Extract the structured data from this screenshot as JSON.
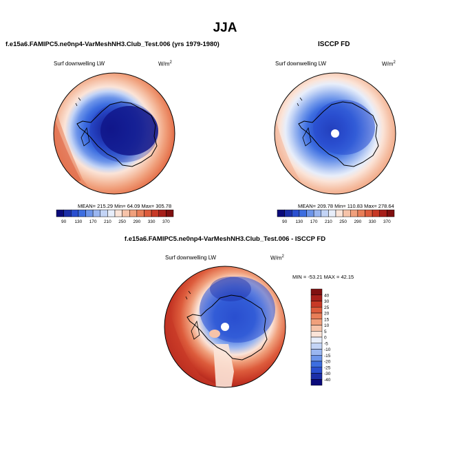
{
  "page": {
    "season": "JJA",
    "left_title": "f.e15a6.FAMIPC5.ne0np4-VarMeshNH3.Club_Test.006 (yrs 1979-1980)",
    "right_title": "ISCCP FD",
    "diff_title": "f.e15a6.FAMIPC5.ne0np4-VarMeshNH3.Club_Test.006 - ISCCP FD"
  },
  "panels": {
    "model": {
      "variable": "Surf downwelling LW",
      "units_base": "W/m",
      "units_exp": "2",
      "stats": "MEAN= 215.29  Min=  64.09  Max= 305.78"
    },
    "obs": {
      "variable": "Surf downwelling LW",
      "units_base": "W/m",
      "units_exp": "2",
      "stats": "MEAN= 209.78  Min= 110.83  Max= 278.64"
    },
    "diff": {
      "variable": "Surf downwelling LW",
      "units_base": "W/m",
      "units_exp": "2",
      "stats": "MIN = -53.21  MAX =  42.15"
    }
  },
  "chart_data": [
    {
      "type": "heatmap",
      "name": "model",
      "title": "Surf downwelling LW",
      "projection": "south-polar stereographic",
      "units": "W/m2",
      "mean": 215.29,
      "min": 64.09,
      "max": 305.78,
      "colorbar": {
        "orientation": "horizontal",
        "levels": [
          90,
          110,
          130,
          150,
          170,
          190,
          210,
          230,
          250,
          270,
          290,
          310,
          330,
          350,
          370
        ],
        "tick_labels": [
          "90",
          "130",
          "170",
          "210",
          "250",
          "290",
          "330",
          "370"
        ],
        "colors": [
          "#0a0a7a",
          "#1c2fa8",
          "#2a4fcf",
          "#3d6ee0",
          "#6d95ea",
          "#9ab6f0",
          "#c3d4f6",
          "#e8eefa",
          "#fbe4d8",
          "#f6c3a9",
          "#f0a07c",
          "#e87e58",
          "#dd5c3c",
          "#c73926",
          "#a71f1a",
          "#801010"
        ]
      }
    },
    {
      "type": "heatmap",
      "name": "obs",
      "title": "Surf downwelling LW",
      "projection": "south-polar stereographic",
      "units": "W/m2",
      "mean": 209.78,
      "min": 110.83,
      "max": 278.64,
      "colorbar": {
        "orientation": "horizontal",
        "levels": [
          90,
          110,
          130,
          150,
          170,
          190,
          210,
          230,
          250,
          270,
          290,
          310,
          330,
          350,
          370
        ],
        "tick_labels": [
          "90",
          "130",
          "170",
          "210",
          "250",
          "290",
          "330",
          "370"
        ],
        "colors": [
          "#0a0a7a",
          "#1c2fa8",
          "#2a4fcf",
          "#3d6ee0",
          "#6d95ea",
          "#9ab6f0",
          "#c3d4f6",
          "#e8eefa",
          "#fbe4d8",
          "#f6c3a9",
          "#f0a07c",
          "#e87e58",
          "#dd5c3c",
          "#c73926",
          "#a71f1a",
          "#801010"
        ]
      }
    },
    {
      "type": "heatmap",
      "name": "diff",
      "title": "Surf downwelling LW",
      "projection": "south-polar stereographic",
      "units": "W/m2",
      "min": -53.21,
      "max": 42.15,
      "colorbar": {
        "orientation": "vertical",
        "levels": [
          -40,
          -30,
          -25,
          -20,
          -15,
          -10,
          -5,
          0,
          5,
          10,
          15,
          20,
          25,
          30,
          40
        ],
        "tick_labels": [
          "40",
          "30",
          "25",
          "20",
          "15",
          "10",
          "5",
          "0",
          "-5",
          "-10",
          "-15",
          "-20",
          "-25",
          "-30",
          "-40"
        ],
        "colors": [
          "#0a0a7a",
          "#1c2fa8",
          "#2a4fcf",
          "#3d6ee0",
          "#6d95ea",
          "#9ab6f0",
          "#c3d4f6",
          "#e8eefa",
          "#fbe4d8",
          "#f6c3a9",
          "#f0a07c",
          "#e87e58",
          "#dd5c3c",
          "#c73926",
          "#a71f1a",
          "#801010"
        ]
      }
    }
  ]
}
